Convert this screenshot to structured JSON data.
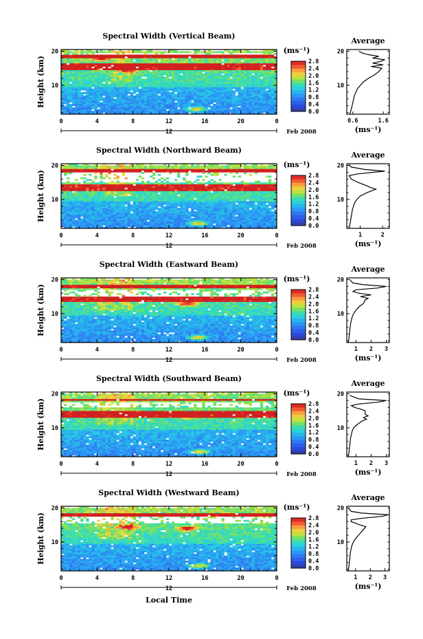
{
  "chart_data": [
    {
      "type": "heatmap",
      "title": "Spectral Width (Vertical Beam)",
      "ylabel": "Height (km)",
      "xticks": [
        "0",
        "4",
        "8",
        "12",
        "16",
        "20",
        "0"
      ],
      "yticks": [
        "10",
        "20"
      ],
      "xlim": [
        0,
        24
      ],
      "ylim": [
        1.5,
        20.5
      ],
      "date_label": "12",
      "month_label": "Feb 2008",
      "colorbar": {
        "unit": "(ms⁻¹)",
        "ticks": [
          "0.0",
          "0.4",
          "0.8",
          "1.2",
          "1.6",
          "2.0",
          "2.4",
          "2.8"
        ],
        "range": [
          0,
          2.8
        ]
      },
      "features": {
        "strong_heights": [
          [
            17.8,
            18.8
          ],
          [
            14.5,
            16.5
          ]
        ],
        "weak_band": [
          5.5,
          8
        ],
        "gap_band": [
          18.8,
          19.5
        ],
        "hotspots": [
          [
            4.5,
            18
          ],
          [
            7.5,
            14.5
          ],
          [
            15,
            3
          ]
        ]
      },
      "profile": {
        "title": "Average",
        "xlabel": "(ms⁻¹)",
        "xticks": [
          "0.6",
          "1.6"
        ],
        "xlim": [
          0.4,
          1.8
        ],
        "yticks": [
          "10",
          "20"
        ],
        "heights": [
          1.5,
          3,
          5,
          7,
          9,
          10,
          11,
          12,
          13,
          14,
          15,
          15.5,
          16,
          16.5,
          17,
          17.5,
          18,
          18.5,
          19,
          19.5,
          20
        ],
        "values": [
          0.5,
          0.55,
          0.6,
          0.65,
          0.75,
          0.85,
          0.95,
          1.1,
          1.3,
          1.45,
          1.55,
          1.2,
          1.6,
          1.25,
          1.5,
          1.65,
          1.25,
          1.45,
          1.1,
          0.9,
          0.8
        ]
      }
    },
    {
      "type": "heatmap",
      "title": "Spectral Width (Northward Beam)",
      "ylabel": "Height (km)",
      "xticks": [
        "0",
        "4",
        "8",
        "12",
        "16",
        "20",
        "0"
      ],
      "yticks": [
        "10",
        "20"
      ],
      "xlim": [
        0,
        24
      ],
      "ylim": [
        1.5,
        20.5
      ],
      "date_label": "12",
      "month_label": "Feb 2008",
      "colorbar": {
        "unit": "(ms⁻¹)",
        "ticks": [
          "0.0",
          "0.4",
          "0.8",
          "1.2",
          "1.6",
          "2.0",
          "2.4",
          "2.8"
        ],
        "range": [
          0,
          2.8
        ]
      },
      "features": {
        "strong_heights": [
          [
            18.2,
            18.8
          ],
          [
            12.5,
            14.5
          ]
        ],
        "weak_band": [
          5,
          8
        ],
        "gap_band": [
          15,
          17.8
        ],
        "hotspots": [
          [
            4.5,
            18.3
          ],
          [
            7.5,
            13.5
          ],
          [
            15.2,
            3
          ]
        ]
      },
      "profile": {
        "title": "Average",
        "xlabel": "(ms⁻¹)",
        "xticks": [
          "1",
          "2"
        ],
        "xlim": [
          0.4,
          2.3
        ],
        "yticks": [
          "10",
          "20"
        ],
        "heights": [
          1.5,
          3,
          5,
          7,
          9,
          10,
          11,
          12,
          12.5,
          13,
          13.5,
          14,
          15,
          16,
          17,
          17.5,
          18,
          18.3,
          18.8,
          19.5,
          20.3
        ],
        "values": [
          0.5,
          0.55,
          0.6,
          0.65,
          0.75,
          0.85,
          1.0,
          1.3,
          1.5,
          1.7,
          1.45,
          1.3,
          0.9,
          0.6,
          0.5,
          0.9,
          1.6,
          2.1,
          1.2,
          0.6,
          0.5
        ]
      }
    },
    {
      "type": "heatmap",
      "title": "Spectral Width (Eastward Beam)",
      "ylabel": "Height (km)",
      "xticks": [
        "0",
        "4",
        "8",
        "12",
        "16",
        "20",
        "0"
      ],
      "yticks": [
        "10",
        "20"
      ],
      "xlim": [
        0,
        24
      ],
      "ylim": [
        1.5,
        20.5
      ],
      "date_label": "12",
      "month_label": "Feb 2008",
      "colorbar": {
        "unit": "(ms⁻¹)",
        "ticks": [
          "0.0",
          "0.4",
          "0.8",
          "1.2",
          "1.6",
          "2.0",
          "2.4",
          "2.8"
        ],
        "range": [
          0,
          2.8
        ]
      },
      "features": {
        "strong_heights": [
          [
            17.5,
            18.3
          ],
          [
            13.5,
            15
          ]
        ],
        "weak_band": [
          4,
          8
        ],
        "gap_band": [
          15.2,
          16.8
        ],
        "hotspots": [
          [
            7,
            14.5
          ],
          [
            14,
            13
          ],
          [
            15.3,
            3
          ]
        ]
      },
      "profile": {
        "title": "Average",
        "xlabel": "(ms⁻¹)",
        "xticks": [
          "1",
          "2",
          "3"
        ],
        "xlim": [
          0.4,
          3.2
        ],
        "yticks": [
          "10",
          "20"
        ],
        "heights": [
          1.5,
          3,
          5,
          7,
          9,
          10,
          11,
          12,
          13,
          14,
          14.5,
          15,
          15.5,
          16,
          16.5,
          17,
          17.5,
          18,
          18.5,
          19,
          20
        ],
        "values": [
          0.5,
          0.55,
          0.6,
          0.65,
          0.75,
          0.85,
          1.0,
          1.2,
          1.5,
          1.6,
          1.8,
          1.3,
          2.0,
          1.2,
          0.8,
          1.0,
          2.4,
          3.0,
          1.5,
          0.8,
          0.6
        ]
      }
    },
    {
      "type": "heatmap",
      "title": "Spectral Width (Southward Beam)",
      "ylabel": "Height (km)",
      "xticks": [
        "0",
        "4",
        "8",
        "12",
        "16",
        "20",
        "0"
      ],
      "yticks": [
        "10",
        "20"
      ],
      "xlim": [
        0,
        24
      ],
      "ylim": [
        1.5,
        20.5
      ],
      "date_label": "12",
      "month_label": "Feb 2008",
      "colorbar": {
        "unit": "(ms⁻¹)",
        "ticks": [
          "0.0",
          "0.4",
          "0.8",
          "1.2",
          "1.6",
          "2.0",
          "2.4",
          "2.8"
        ],
        "range": [
          0,
          2.8
        ]
      },
      "features": {
        "strong_heights": [
          [
            17.8,
            18.6
          ],
          [
            13,
            15
          ]
        ],
        "weak_band": [
          4,
          8
        ],
        "gap_band": [
          16.2,
          17.3
        ],
        "hotspots": [
          [
            7.5,
            14
          ],
          [
            14,
            13.5
          ],
          [
            15.5,
            3
          ]
        ]
      },
      "profile": {
        "title": "Average",
        "xlabel": "(ms⁻¹)",
        "xticks": [
          "1",
          "2",
          "3"
        ],
        "xlim": [
          0.4,
          3.2
        ],
        "yticks": [
          "10",
          "20"
        ],
        "heights": [
          1.5,
          3,
          5,
          7,
          9,
          10,
          11,
          12,
          12.5,
          13,
          13.5,
          14,
          15,
          15.5,
          16,
          16.5,
          17,
          17.5,
          18,
          18.5,
          19.5
        ],
        "values": [
          0.5,
          0.55,
          0.6,
          0.65,
          0.75,
          0.85,
          1.1,
          1.4,
          1.7,
          1.5,
          1.8,
          1.6,
          1.6,
          1.3,
          0.9,
          0.7,
          1.2,
          2.4,
          3.0,
          1.2,
          0.6
        ]
      }
    },
    {
      "type": "heatmap",
      "title": "Spectral Width (Westward Beam)",
      "ylabel": "Height (km)",
      "xticks": [
        "0",
        "4",
        "8",
        "12",
        "16",
        "20",
        "0"
      ],
      "yticks": [
        "10",
        "20"
      ],
      "xlim": [
        0,
        24
      ],
      "ylim": [
        1.5,
        20.5
      ],
      "date_label": "12",
      "month_label": "Feb 2008",
      "colorbar": {
        "unit": "(ms⁻¹)",
        "ticks": [
          "0.0",
          "0.4",
          "0.8",
          "1.2",
          "1.6",
          "2.0",
          "2.4",
          "2.8"
        ],
        "range": [
          0,
          2.8
        ]
      },
      "xlabel": "Local Time",
      "features": {
        "strong_heights": [
          [
            17.5,
            18.3
          ]
        ],
        "weak_band": [
          4,
          8
        ],
        "gap_band": [
          15.5,
          17.3
        ],
        "hotspots": [
          [
            7.5,
            14.5
          ],
          [
            14,
            14
          ],
          [
            15.3,
            3
          ]
        ]
      },
      "profile": {
        "title": "Average",
        "xlabel": "(ms⁻¹)",
        "xticks": [
          "1",
          "2",
          "3"
        ],
        "xlim": [
          0.4,
          3.3
        ],
        "yticks": [
          "10",
          "20"
        ],
        "heights": [
          1.5,
          3,
          5,
          7,
          9,
          10,
          11,
          12,
          13,
          14,
          14.5,
          15,
          15.5,
          16,
          16.5,
          17,
          17.5,
          18,
          18.5,
          19,
          20
        ],
        "values": [
          0.5,
          0.55,
          0.6,
          0.65,
          0.75,
          0.85,
          1.0,
          1.2,
          1.4,
          1.6,
          1.7,
          1.3,
          1.0,
          0.7,
          0.7,
          1.5,
          2.8,
          3.2,
          1.4,
          0.7,
          0.5
        ]
      }
    }
  ]
}
